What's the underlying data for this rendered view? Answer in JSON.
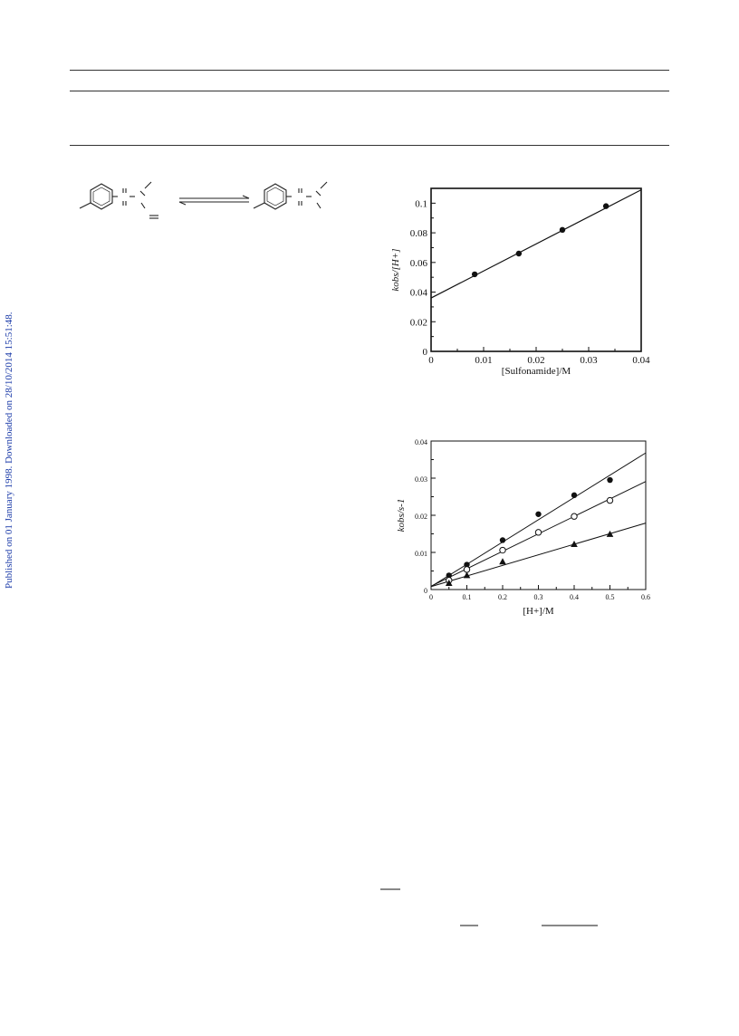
{
  "side_note": "Published on 01 January 1998. Downloaded on 28/10/2014 15:51:48.",
  "figure1": {
    "chart_data": {
      "type": "scatter",
      "xlabel": "[Sulfonamide]/M",
      "ylabel": "kobs/[H+]",
      "xlim": [
        0,
        0.04
      ],
      "ylim": [
        0,
        0.11
      ],
      "x_ticks": [
        "0",
        "0.01",
        "0.02",
        "0.03",
        "0.04"
      ],
      "y_ticks": [
        "0",
        "0.02",
        "0.04",
        "0.06",
        "0.08",
        "0.1"
      ],
      "series": [
        {
          "marker": "filled-circle",
          "x": [
            0.0083,
            0.0167,
            0.025,
            0.0333
          ],
          "y": [
            0.052,
            0.066,
            0.082,
            0.098
          ]
        }
      ],
      "fit_line": {
        "x": [
          0,
          0.04
        ],
        "y": [
          0.036,
          0.109
        ]
      },
      "grid": false
    }
  },
  "figure2": {
    "chart_data": {
      "type": "scatter",
      "xlabel": "[H+]/M",
      "ylabel": "kobs/s-1",
      "xlim": [
        0,
        0.6
      ],
      "ylim": [
        0,
        0.04
      ],
      "x_ticks": [
        "0",
        "0.1",
        "0.2",
        "0.3",
        "0.4",
        "0.5",
        "0.6"
      ],
      "y_ticks": [
        "0",
        "0.01",
        "0.02",
        "0.03",
        "0.04"
      ],
      "series": [
        {
          "marker": "filled-circle",
          "x": [
            0.05,
            0.1,
            0.2,
            0.3,
            0.4,
            0.5
          ],
          "y": [
            0.0038,
            0.0067,
            0.0133,
            0.0203,
            0.0254,
            0.0295
          ],
          "fit": [
            [
              0,
              0.0008
            ],
            [
              0.6,
              0.0368
            ]
          ]
        },
        {
          "marker": "open-circle",
          "x": [
            0.05,
            0.1,
            0.2,
            0.3,
            0.4,
            0.5
          ],
          "y": [
            0.0025,
            0.0054,
            0.0106,
            0.0154,
            0.0197,
            0.024
          ],
          "fit": [
            [
              0,
              0.0009
            ],
            [
              0.6,
              0.0291
            ]
          ]
        },
        {
          "marker": "filled-triangle",
          "x": [
            0.05,
            0.1,
            0.2,
            0.4,
            0.5
          ],
          "y": [
            0.0017,
            0.0038,
            0.0075,
            0.0122,
            0.0149
          ],
          "fit": [
            [
              0,
              0.0008
            ],
            [
              0.6,
              0.0179
            ]
          ]
        }
      ],
      "grid": false
    }
  }
}
